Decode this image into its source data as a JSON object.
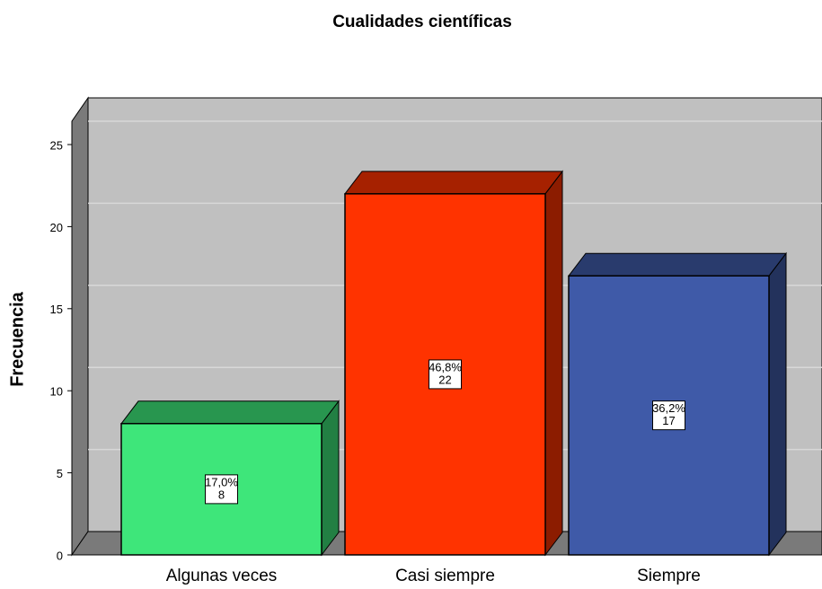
{
  "chart_data": {
    "type": "bar3d",
    "title": "Cualidades científicas",
    "y_label": "Frecuencia",
    "categories": [
      "Algunas veces",
      "Casi siempre",
      "Siempre"
    ],
    "values": [
      8,
      22,
      17
    ],
    "percentages": [
      17.0,
      46.8,
      36.2
    ],
    "percentage_labels": [
      "17,0%",
      "46,8%",
      "36,2%"
    ],
    "colors": [
      "#3ee67a",
      "#ff3300",
      "#3f5aa8"
    ],
    "ylim": [
      0,
      25
    ],
    "yticks": [
      0,
      5,
      10,
      15,
      20,
      25
    ],
    "grid": true
  }
}
